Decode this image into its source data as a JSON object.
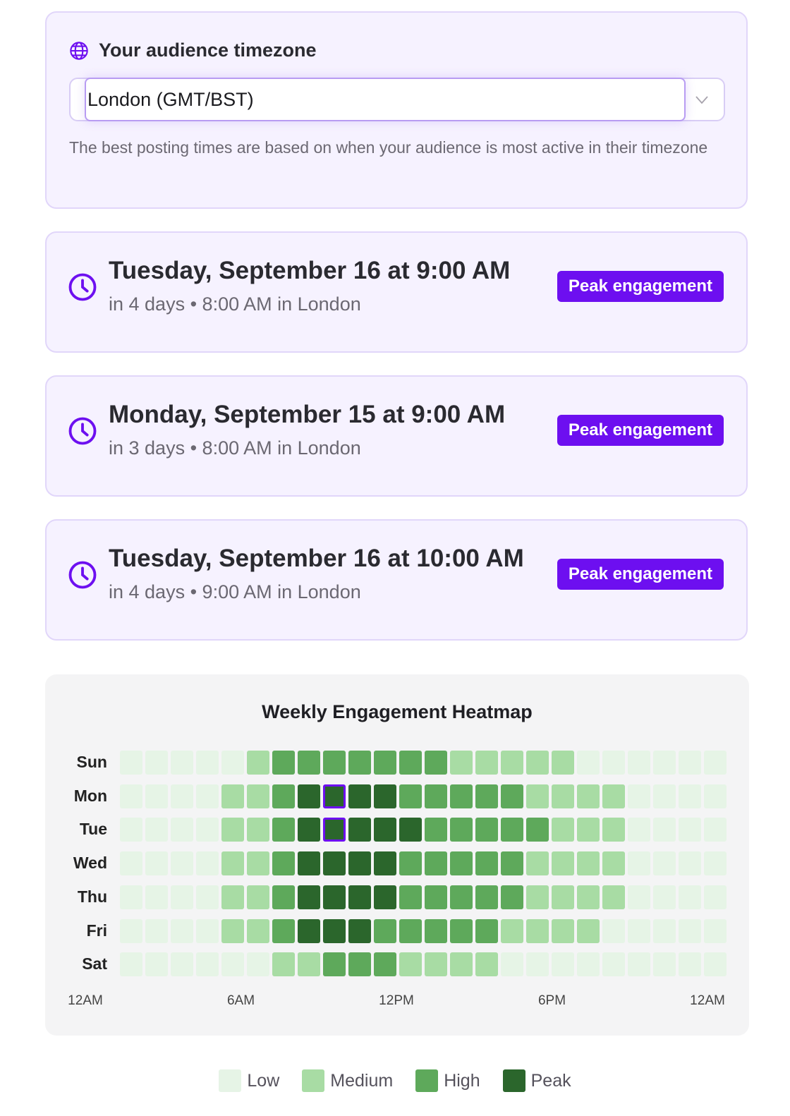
{
  "timezone": {
    "title": "Your audience timezone",
    "selected": "London (GMT/BST)",
    "help": "The best posting times are based on when your audience is most active in their timezone"
  },
  "slots": [
    {
      "when": "Tuesday, September 16 at 9:00 AM",
      "relative": "in 4 days",
      "local": "8:00 AM in London",
      "badge": "Peak engagement"
    },
    {
      "when": "Monday, September 15 at 9:00 AM",
      "relative": "in 3 days",
      "local": "8:00 AM in London",
      "badge": "Peak engagement"
    },
    {
      "when": "Tuesday, September 16 at 10:00 AM",
      "relative": "in 4 days",
      "local": "9:00 AM in London",
      "badge": "Peak engagement"
    }
  ],
  "colors": {
    "accent": "#6d0ff0",
    "low": "#e6f4e6",
    "medium": "#a8dca4",
    "high": "#5ea95b",
    "peak": "#2b662c"
  },
  "chart_data": {
    "type": "heatmap",
    "title": "Weekly Engagement Heatmap",
    "rows": [
      "Sun",
      "Mon",
      "Tue",
      "Wed",
      "Thu",
      "Fri",
      "Sat"
    ],
    "x_tick_labels": [
      "12AM",
      "6AM",
      "12PM",
      "6PM",
      "12AM"
    ],
    "levels": [
      "Low",
      "Medium",
      "High",
      "Peak"
    ],
    "values": [
      [
        0,
        0,
        0,
        0,
        0,
        1,
        2,
        2,
        2,
        2,
        2,
        2,
        2,
        1,
        1,
        1,
        1,
        1,
        0,
        0,
        0,
        0,
        0,
        0
      ],
      [
        0,
        0,
        0,
        0,
        1,
        1,
        2,
        3,
        3,
        3,
        3,
        2,
        2,
        2,
        2,
        2,
        1,
        1,
        1,
        1,
        0,
        0,
        0,
        0
      ],
      [
        0,
        0,
        0,
        0,
        1,
        1,
        2,
        3,
        3,
        3,
        3,
        3,
        2,
        2,
        2,
        2,
        2,
        1,
        1,
        1,
        0,
        0,
        0,
        0
      ],
      [
        0,
        0,
        0,
        0,
        1,
        1,
        2,
        3,
        3,
        3,
        3,
        2,
        2,
        2,
        2,
        2,
        1,
        1,
        1,
        1,
        0,
        0,
        0,
        0
      ],
      [
        0,
        0,
        0,
        0,
        1,
        1,
        2,
        3,
        3,
        3,
        3,
        2,
        2,
        2,
        2,
        2,
        1,
        1,
        1,
        1,
        0,
        0,
        0,
        0
      ],
      [
        0,
        0,
        0,
        0,
        1,
        1,
        2,
        3,
        3,
        3,
        2,
        2,
        2,
        2,
        2,
        1,
        1,
        1,
        1,
        0,
        0,
        0,
        0,
        0
      ],
      [
        0,
        0,
        0,
        0,
        0,
        0,
        1,
        1,
        2,
        2,
        2,
        1,
        1,
        1,
        1,
        0,
        0,
        0,
        0,
        0,
        0,
        0,
        0,
        0
      ]
    ],
    "highlighted": [
      [
        1,
        8
      ],
      [
        2,
        8
      ]
    ]
  }
}
